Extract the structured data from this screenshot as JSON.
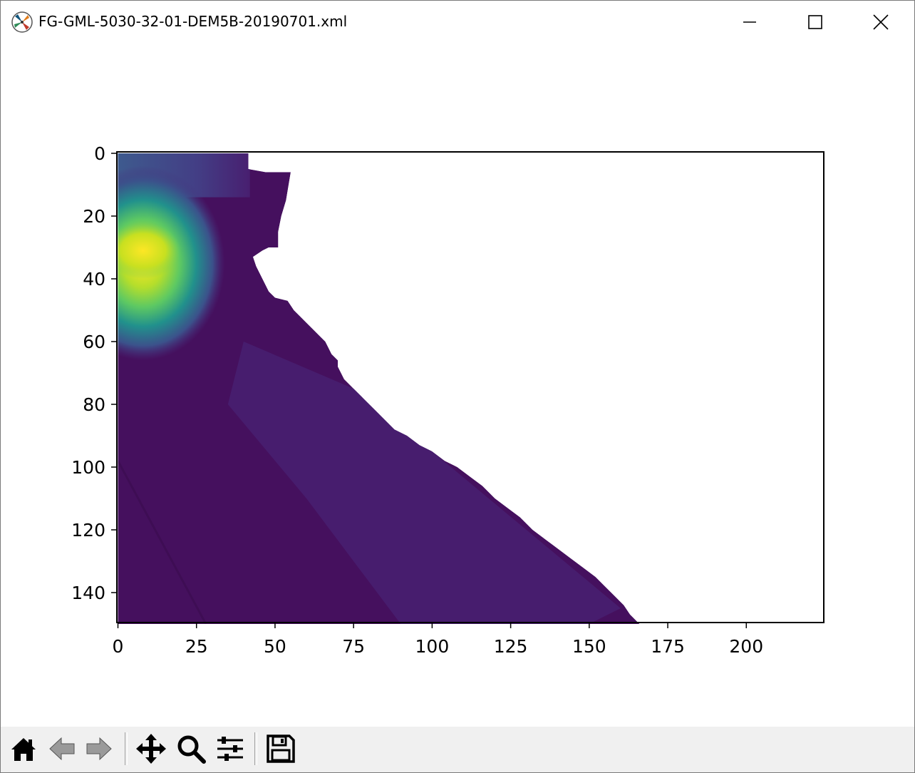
{
  "window": {
    "title": "FG-GML-5030-32-01-DEM5B-20190701.xml",
    "controls": {
      "minimize_icon": "minimize-icon",
      "maximize_icon": "maximize-icon",
      "close_icon": "close-icon"
    }
  },
  "toolbar": {
    "buttons": [
      {
        "id": "home",
        "icon": "home-icon",
        "enabled": true
      },
      {
        "id": "back",
        "icon": "back-arrow-icon",
        "enabled": false
      },
      {
        "id": "forward",
        "icon": "forward-arrow-icon",
        "enabled": false
      },
      {
        "id": "pan",
        "icon": "pan-move-icon",
        "enabled": true
      },
      {
        "id": "zoom",
        "icon": "zoom-magnifier-icon",
        "enabled": true
      },
      {
        "id": "configure",
        "icon": "configure-subplots-icon",
        "enabled": true
      },
      {
        "id": "save",
        "icon": "save-floppy-icon",
        "enabled": true
      }
    ]
  },
  "chart_data": {
    "type": "heatmap",
    "colormap": "viridis",
    "title": "",
    "xlabel": "",
    "ylabel": "",
    "xlim": [
      0,
      225
    ],
    "ylim": [
      150,
      0
    ],
    "x_ticks": [
      "0",
      "25",
      "50",
      "75",
      "100",
      "125",
      "150",
      "175",
      "200"
    ],
    "y_ticks": [
      "0",
      "20",
      "40",
      "60",
      "80",
      "100",
      "120",
      "140"
    ],
    "grid": false,
    "nodata_color": "#ffffff",
    "colors": {
      "low": "#440154",
      "mid": "#21918c",
      "high": "#fde725"
    }
  }
}
